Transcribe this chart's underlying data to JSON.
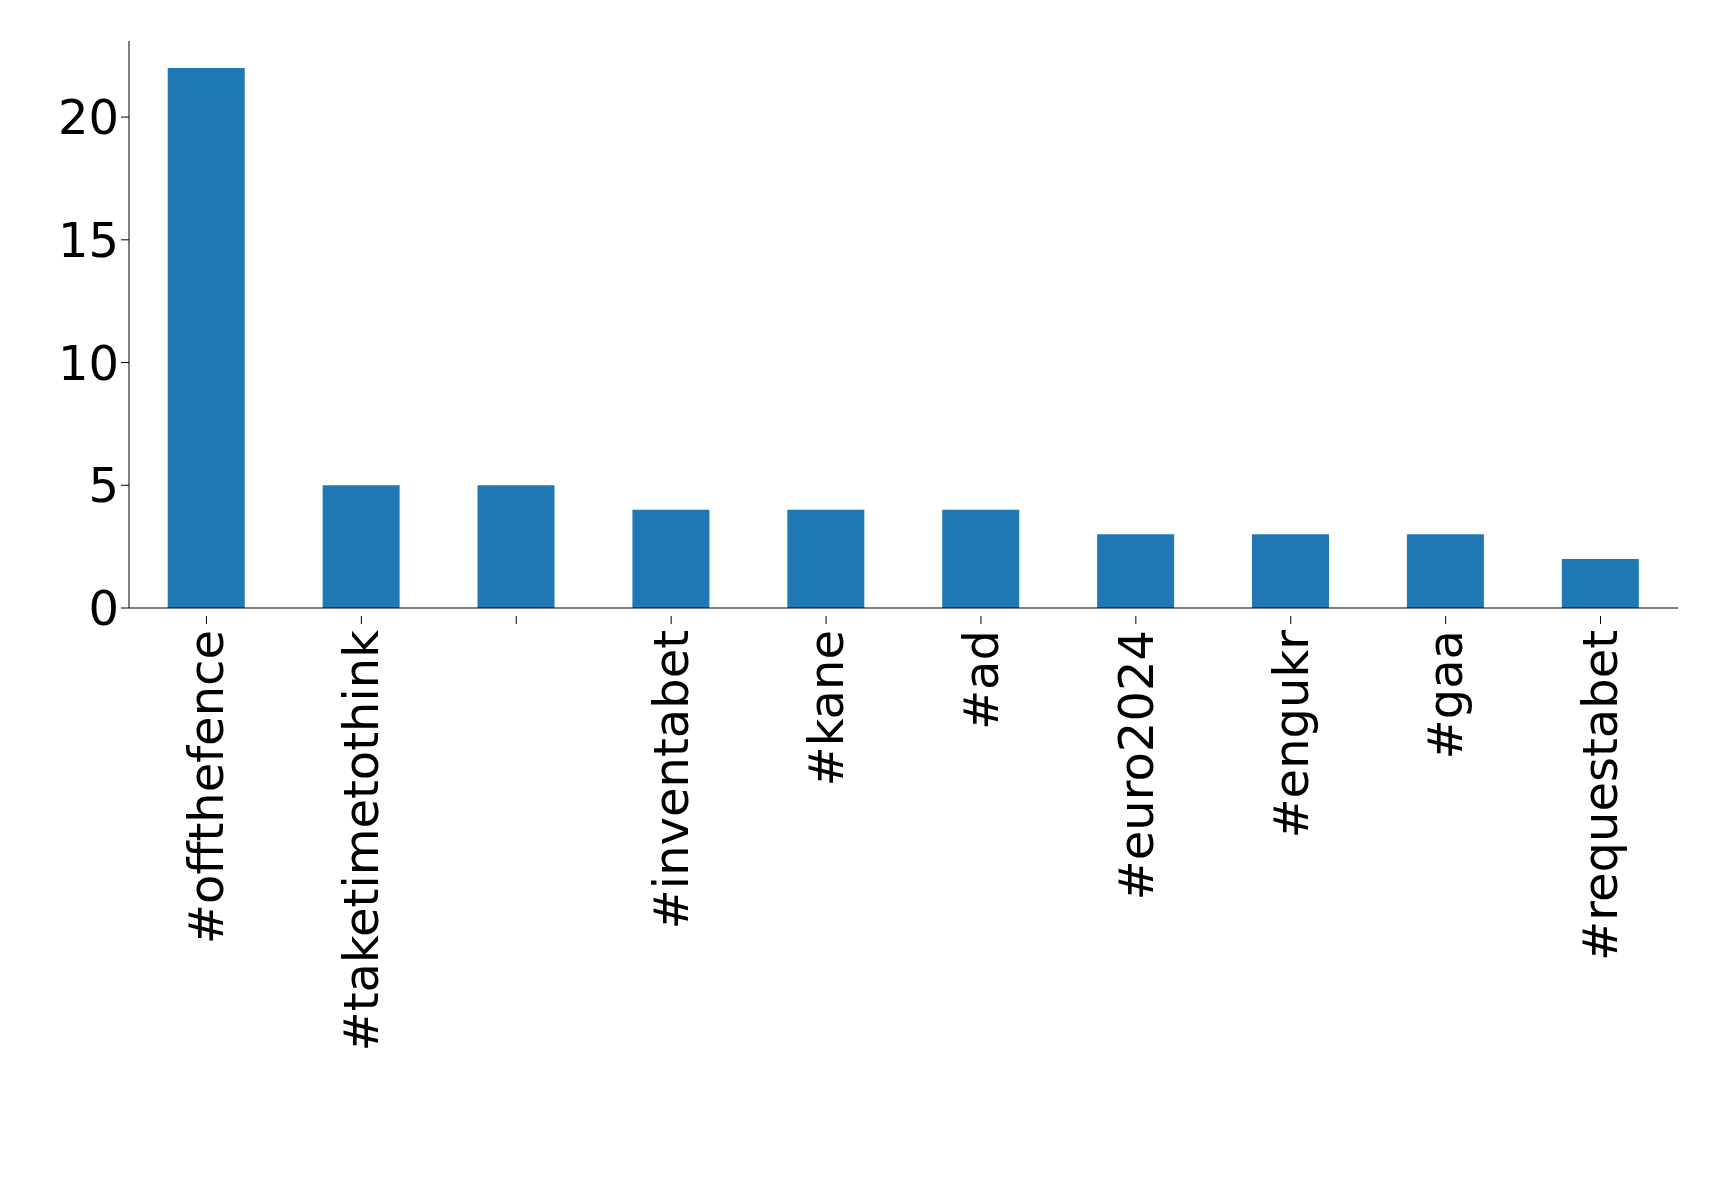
{
  "chart_data": {
    "type": "bar",
    "categories": [
      "#offthefence",
      "#taketimetothink",
      null,
      "#inventabet",
      "#kane",
      "#ad",
      "#euro2024",
      "#engukr",
      "#gaa",
      "#requestabet"
    ],
    "values": [
      22,
      5,
      5,
      4,
      4,
      4,
      3,
      3,
      3,
      2
    ],
    "color": "#1f77b4",
    "ylim": [
      0,
      23.1
    ],
    "yticks": [
      0,
      5,
      10,
      15,
      20
    ],
    "grid": false
  }
}
